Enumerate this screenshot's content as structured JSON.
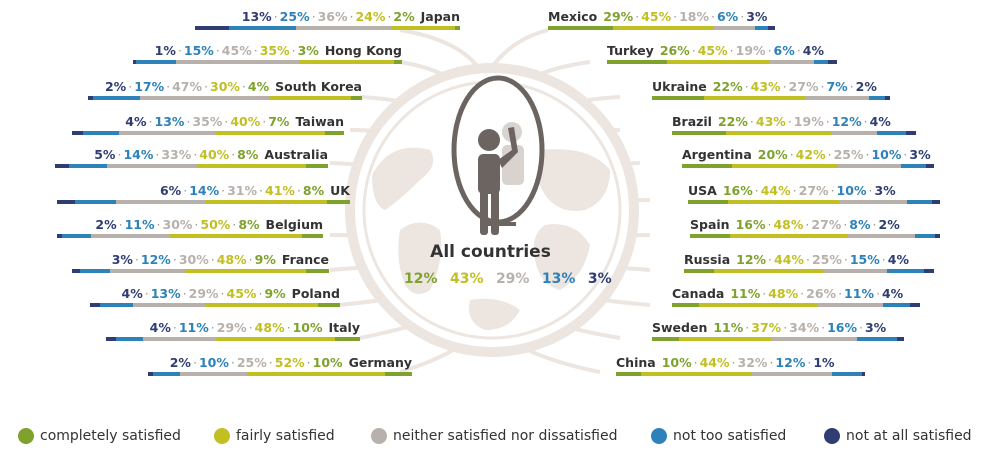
{
  "colors": {
    "completely": "#7ea22c",
    "fairly": "#c1bf22",
    "neither": "#b8b0ab",
    "not_too": "#2d82b9",
    "not_at_all": "#2f3d72"
  },
  "center": {
    "title": "All countries",
    "values": [
      "12%",
      "43%",
      "29%",
      "13%",
      "3%"
    ]
  },
  "legend": [
    {
      "label": "completely satisfied",
      "color_key": "completely"
    },
    {
      "label": "fairly satisfied",
      "color_key": "fairly"
    },
    {
      "label": "neither satisfied nor dissatisfied",
      "color_key": "neither"
    },
    {
      "label": "not too satisfied",
      "color_key": "not_too"
    },
    {
      "label": "not at all satisfied",
      "color_key": "not_at_all"
    }
  ],
  "chart_data": {
    "type": "bar",
    "stacked": true,
    "series_order": [
      "completely satisfied",
      "fairly satisfied",
      "neither satisfied nor dissatisfied",
      "not too satisfied",
      "not at all satisfied"
    ],
    "all_countries": {
      "completely": 12,
      "fairly": 43,
      "neither": 29,
      "not_too": 13,
      "not_at_all": 3
    },
    "left": [
      {
        "country": "Japan",
        "completely": 2,
        "fairly": 24,
        "neither": 36,
        "not_too": 25,
        "not_at_all": 13
      },
      {
        "country": "Hong Kong",
        "completely": 3,
        "fairly": 35,
        "neither": 45,
        "not_too": 15,
        "not_at_all": 1
      },
      {
        "country": "South Korea",
        "completely": 4,
        "fairly": 30,
        "neither": 47,
        "not_too": 17,
        "not_at_all": 2
      },
      {
        "country": "Taiwan",
        "completely": 7,
        "fairly": 40,
        "neither": 35,
        "not_too": 13,
        "not_at_all": 4
      },
      {
        "country": "Australia",
        "completely": 8,
        "fairly": 40,
        "neither": 33,
        "not_too": 14,
        "not_at_all": 5
      },
      {
        "country": "UK",
        "completely": 8,
        "fairly": 41,
        "neither": 31,
        "not_too": 14,
        "not_at_all": 6
      },
      {
        "country": "Belgium",
        "completely": 8,
        "fairly": 50,
        "neither": 30,
        "not_too": 11,
        "not_at_all": 2
      },
      {
        "country": "France",
        "completely": 9,
        "fairly": 48,
        "neither": 30,
        "not_too": 12,
        "not_at_all": 3
      },
      {
        "country": "Poland",
        "completely": 9,
        "fairly": 45,
        "neither": 29,
        "not_too": 13,
        "not_at_all": 4
      },
      {
        "country": "Italy",
        "completely": 10,
        "fairly": 48,
        "neither": 29,
        "not_too": 11,
        "not_at_all": 4
      },
      {
        "country": "Germany",
        "completely": 10,
        "fairly": 52,
        "neither": 25,
        "not_too": 10,
        "not_at_all": 2
      }
    ],
    "right": [
      {
        "country": "Mexico",
        "completely": 29,
        "fairly": 45,
        "neither": 18,
        "not_too": 6,
        "not_at_all": 3
      },
      {
        "country": "Turkey",
        "completely": 26,
        "fairly": 45,
        "neither": 19,
        "not_too": 6,
        "not_at_all": 4
      },
      {
        "country": "Ukraine",
        "completely": 22,
        "fairly": 43,
        "neither": 27,
        "not_too": 7,
        "not_at_all": 2
      },
      {
        "country": "Brazil",
        "completely": 22,
        "fairly": 43,
        "neither": 19,
        "not_too": 12,
        "not_at_all": 4
      },
      {
        "country": "Argentina",
        "completely": 20,
        "fairly": 42,
        "neither": 25,
        "not_too": 10,
        "not_at_all": 3
      },
      {
        "country": "USA",
        "completely": 16,
        "fairly": 44,
        "neither": 27,
        "not_too": 10,
        "not_at_all": 3
      },
      {
        "country": "Spain",
        "completely": 16,
        "fairly": 48,
        "neither": 27,
        "not_too": 8,
        "not_at_all": 2
      },
      {
        "country": "Russia",
        "completely": 12,
        "fairly": 44,
        "neither": 25,
        "not_too": 15,
        "not_at_all": 4
      },
      {
        "country": "Canada",
        "completely": 11,
        "fairly": 48,
        "neither": 26,
        "not_too": 11,
        "not_at_all": 4
      },
      {
        "country": "Sweden",
        "completely": 11,
        "fairly": 37,
        "neither": 34,
        "not_too": 16,
        "not_at_all": 3
      },
      {
        "country": "China",
        "completely": 10,
        "fairly": 44,
        "neither": 32,
        "not_too": 12,
        "not_at_all": 1
      }
    ]
  }
}
